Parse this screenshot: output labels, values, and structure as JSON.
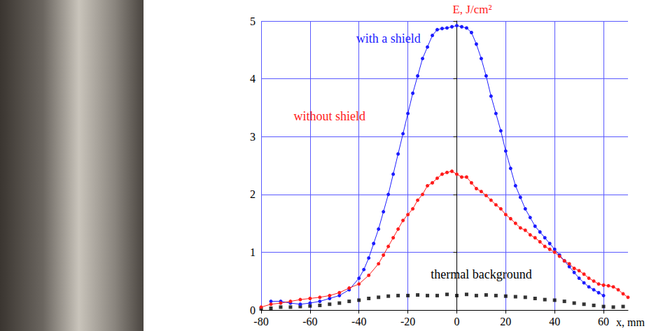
{
  "chart_data": {
    "type": "line",
    "x_label": "x, mm",
    "y_label": "E, J/cm²",
    "xlim": [
      -80,
      70
    ],
    "xticks": [
      -80,
      -60,
      -40,
      -20,
      0,
      20,
      40,
      60
    ],
    "ylim": [
      0,
      5
    ],
    "yticks": [
      0,
      1,
      2,
      3,
      4,
      5
    ],
    "grid": true,
    "series": [
      {
        "name": "with a shield",
        "color": "#1c1cff",
        "type": "line",
        "marker": "circle",
        "x": [
          -76,
          -72,
          -68,
          -64,
          -60,
          -56,
          -52,
          -48,
          -44,
          -40,
          -38,
          -36,
          -34,
          -32,
          -30,
          -28,
          -26,
          -24,
          -22,
          -20,
          -18,
          -16,
          -14,
          -12,
          -10,
          -8,
          -6,
          -4,
          -2,
          0,
          2,
          4,
          6,
          8,
          10,
          12,
          14,
          16,
          18,
          20,
          22,
          24,
          26,
          28,
          30,
          32,
          34,
          36,
          38,
          40,
          42,
          44,
          46,
          48,
          50,
          52,
          54,
          56,
          58,
          60
        ],
        "values": [
          0.15,
          0.15,
          0.12,
          0.1,
          0.12,
          0.15,
          0.2,
          0.25,
          0.35,
          0.55,
          0.7,
          0.9,
          1.15,
          1.4,
          1.7,
          2.0,
          2.35,
          2.7,
          3.05,
          3.4,
          3.75,
          4.05,
          4.35,
          4.55,
          4.75,
          4.85,
          4.87,
          4.88,
          4.9,
          4.92,
          4.9,
          4.88,
          4.8,
          4.6,
          4.35,
          4.05,
          3.7,
          3.4,
          3.1,
          2.75,
          2.45,
          2.15,
          1.95,
          1.75,
          1.6,
          1.45,
          1.35,
          1.25,
          1.15,
          1.05,
          0.95,
          0.85,
          0.75,
          0.65,
          0.55,
          0.47,
          0.4,
          0.35,
          0.3,
          0.25
        ]
      },
      {
        "name": "without shield",
        "color": "#ff1c1c",
        "type": "line",
        "marker": "circle",
        "x": [
          -80,
          -76,
          -72,
          -68,
          -64,
          -60,
          -56,
          -52,
          -48,
          -44,
          -40,
          -36,
          -32,
          -30,
          -28,
          -26,
          -24,
          -22,
          -20,
          -18,
          -16,
          -14,
          -12,
          -10,
          -8,
          -6,
          -4,
          -2,
          0,
          2,
          4,
          6,
          8,
          10,
          12,
          14,
          16,
          18,
          20,
          22,
          24,
          26,
          28,
          30,
          32,
          34,
          36,
          38,
          40,
          42,
          44,
          46,
          48,
          50,
          52,
          54,
          56,
          58,
          60,
          62,
          64,
          66,
          68,
          70
        ],
        "values": [
          0.05,
          0.1,
          0.12,
          0.15,
          0.18,
          0.2,
          0.22,
          0.25,
          0.3,
          0.38,
          0.45,
          0.6,
          0.8,
          0.95,
          1.1,
          1.25,
          1.4,
          1.55,
          1.65,
          1.75,
          1.9,
          2.0,
          2.15,
          2.2,
          2.28,
          2.35,
          2.38,
          2.4,
          2.35,
          2.3,
          2.3,
          2.2,
          2.1,
          2.05,
          1.98,
          1.9,
          1.82,
          1.75,
          1.65,
          1.58,
          1.5,
          1.42,
          1.38,
          1.3,
          1.25,
          1.18,
          1.1,
          1.05,
          1.0,
          0.93,
          0.85,
          0.8,
          0.72,
          0.68,
          0.62,
          0.55,
          0.5,
          0.45,
          0.43,
          0.42,
          0.4,
          0.35,
          0.28,
          0.22
        ]
      },
      {
        "name": "thermal background",
        "color": "#000000",
        "type": "scatter",
        "marker": "square",
        "x": [
          -80,
          -76,
          -72,
          -68,
          -64,
          -60,
          -56,
          -52,
          -48,
          -44,
          -40,
          -36,
          -32,
          -28,
          -24,
          -20,
          -16,
          -12,
          -8,
          -4,
          0,
          4,
          8,
          12,
          16,
          20,
          24,
          28,
          32,
          36,
          40,
          44,
          48,
          52,
          56,
          60,
          64,
          68
        ],
        "values": [
          0.02,
          0.03,
          0.05,
          0.05,
          0.06,
          0.07,
          0.08,
          0.1,
          0.12,
          0.15,
          0.17,
          0.2,
          0.22,
          0.24,
          0.25,
          0.25,
          0.26,
          0.25,
          0.25,
          0.27,
          0.25,
          0.27,
          0.25,
          0.26,
          0.25,
          0.24,
          0.23,
          0.22,
          0.2,
          0.18,
          0.17,
          0.15,
          0.12,
          0.1,
          0.08,
          0.06,
          0.05,
          0.06
        ]
      }
    ],
    "annotations": [
      {
        "text": "with a shield",
        "x": -28,
        "y": 4.7,
        "color": "#1c1cff"
      },
      {
        "text": "without shield",
        "x": -52,
        "y": 3.35,
        "color": "#ff1c1c"
      },
      {
        "text": "thermal background",
        "x": 10,
        "y": 0.62,
        "color": "#000000"
      }
    ]
  }
}
